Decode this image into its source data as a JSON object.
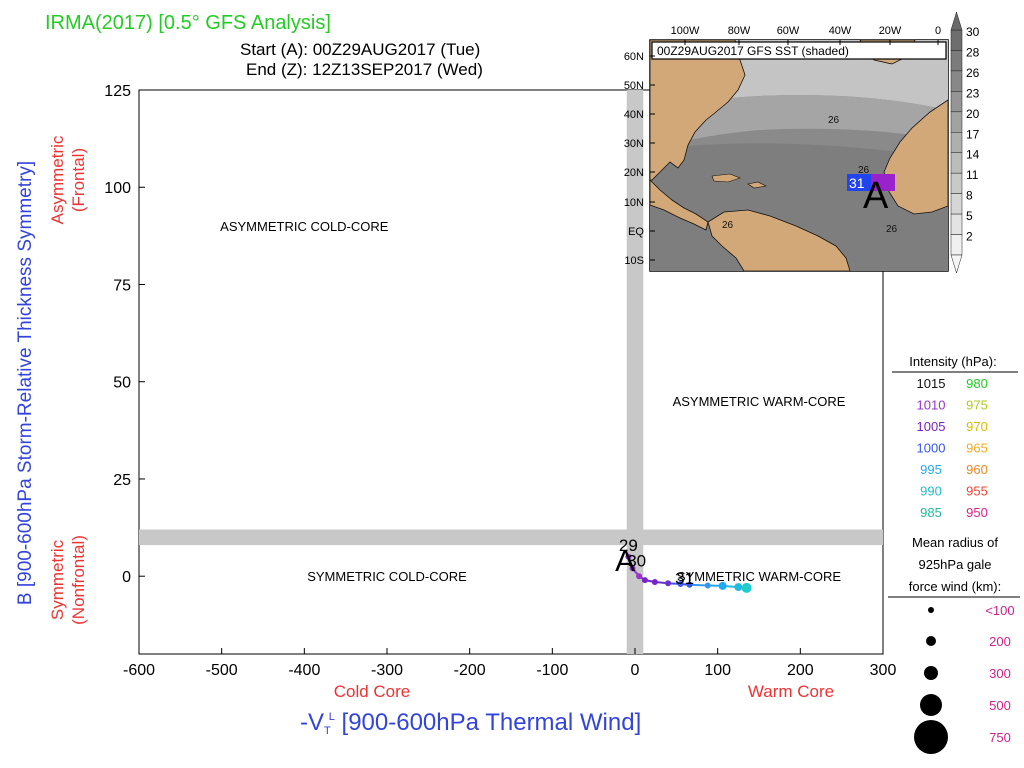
{
  "header": {
    "title": "IRMA(2017) [0.5° GFS Analysis]",
    "start": "Start (A): 00Z29AUG2017 (Tue)",
    "end": "End (Z): 12Z13SEP2017 (Wed)"
  },
  "colors": {
    "title": "#22cc22",
    "ylabel": "#3344dd",
    "xlabel": "#3344dd",
    "red_label": "#ee3333",
    "band": "#c8c8c8",
    "land": "#d2a878",
    "map_sea": "#888888"
  },
  "chart_data": {
    "type": "scatter",
    "title": "IRMA(2017) [0.5° GFS Analysis]",
    "xlabel_prefix": "-V",
    "xlabel_sub": "T",
    "xlabel_sup": "L",
    "xlabel_rest": " [900-600hPa Thermal Wind]",
    "ylabel": "B [900-600hPa Storm-Relative Thickness Symmetry]",
    "xlim": [
      -600,
      300
    ],
    "ylim": [
      -20,
      125
    ],
    "xticks": [
      -600,
      -500,
      -400,
      -300,
      -200,
      -100,
      0,
      100,
      200,
      300
    ],
    "yticks": [
      0,
      25,
      50,
      75,
      100,
      125
    ],
    "grid": false,
    "side_labels": {
      "asym_top": "Asymmetric",
      "asym_bottom": "(Frontal)",
      "sym_top": "Symmetric",
      "sym_bottom": "(Nonfrontal)",
      "cold_core": "Cold Core",
      "warm_core": "Warm Core"
    },
    "quadrants": [
      {
        "label": "ASYMMETRIC COLD-CORE",
        "x": -400,
        "y": 90
      },
      {
        "label": "ASYMMETRIC WARM-CORE",
        "x": 150,
        "y": 45
      },
      {
        "label": "SYMMETRIC COLD-CORE",
        "x": -300,
        "y": 0
      },
      {
        "label": "SYMMETRIC WARM-CORE",
        "x": 150,
        "y": 0
      }
    ],
    "neutral_bands": {
      "x": [
        -10,
        10
      ],
      "y": [
        8,
        12
      ]
    },
    "track": [
      {
        "x": -8,
        "y": 5,
        "color": "#9933cc"
      },
      {
        "x": -3,
        "y": 2,
        "color": "#9933cc"
      },
      {
        "x": 5,
        "y": 0,
        "color": "#9933cc"
      },
      {
        "x": 12,
        "y": -1,
        "color": "#7722cc"
      },
      {
        "x": 24,
        "y": -1.5,
        "color": "#7722cc"
      },
      {
        "x": 40,
        "y": -1.8,
        "color": "#6633cc"
      },
      {
        "x": 55,
        "y": -2,
        "color": "#4455ee"
      },
      {
        "x": 66,
        "y": -2.2,
        "color": "#3355ee"
      },
      {
        "x": 88,
        "y": -2.4,
        "color": "#3399ee"
      },
      {
        "x": 106,
        "y": -2.5,
        "color": "#22aaee"
      },
      {
        "x": 125,
        "y": -2.8,
        "color": "#22bbdd"
      },
      {
        "x": 135,
        "y": -3,
        "color": "#22cccc"
      }
    ],
    "track_labels": [
      {
        "text": "A",
        "x": -12,
        "y": 4,
        "size": 30
      },
      {
        "text": "29",
        "x": -8,
        "y": 8,
        "size": 17
      },
      {
        "text": "30",
        "x": 2,
        "y": 4,
        "size": 17
      },
      {
        "text": "31",
        "x": 60,
        "y": -0.5,
        "size": 17
      }
    ]
  },
  "inset": {
    "title": "00Z29AUG2017 GFS SST (shaded)",
    "lon_labels": [
      "100W",
      "80W",
      "60W",
      "40W",
      "20W",
      "0"
    ],
    "lat_labels": [
      "60N",
      "50N",
      "40N",
      "30N",
      "20N",
      "10N",
      "EQ",
      "10S"
    ],
    "contour_labels": [
      "26",
      "26",
      "26",
      "26"
    ],
    "box_label": "31",
    "marker": "A",
    "colorbar_values": [
      "30",
      "28",
      "26",
      "23",
      "20",
      "17",
      "14",
      "11",
      "8",
      "5",
      "2"
    ]
  },
  "legend": {
    "intensity_title": "Intensity (hPa):",
    "intensity": [
      {
        "left": "1015",
        "left_color": "#111111",
        "right": "980",
        "right_color": "#22cc22"
      },
      {
        "left": "1010",
        "left_color": "#9933cc",
        "right": "975",
        "right_color": "#aacc22"
      },
      {
        "left": "1005",
        "left_color": "#7722cc",
        "right": "970",
        "right_color": "#ddbb00"
      },
      {
        "left": "1000",
        "left_color": "#3355ee",
        "right": "965",
        "right_color": "#eeaa22"
      },
      {
        "left": "995",
        "left_color": "#22aaee",
        "right": "960",
        "right_color": "#ee8822"
      },
      {
        "left": "990",
        "left_color": "#22bbcc",
        "right": "955",
        "right_color": "#ee4433"
      },
      {
        "left": "985",
        "left_color": "#22bb99",
        "right": "950",
        "right_color": "#dd2288"
      }
    ],
    "radius_title_1": "Mean radius of",
    "radius_title_2": "925hPa gale",
    "radius_title_3": "force wind (km):",
    "radius": [
      {
        "label": "<100",
        "r": 3
      },
      {
        "label": "200",
        "r": 5
      },
      {
        "label": "300",
        "r": 7
      },
      {
        "label": "500",
        "r": 11
      },
      {
        "label": "750",
        "r": 17
      }
    ]
  }
}
